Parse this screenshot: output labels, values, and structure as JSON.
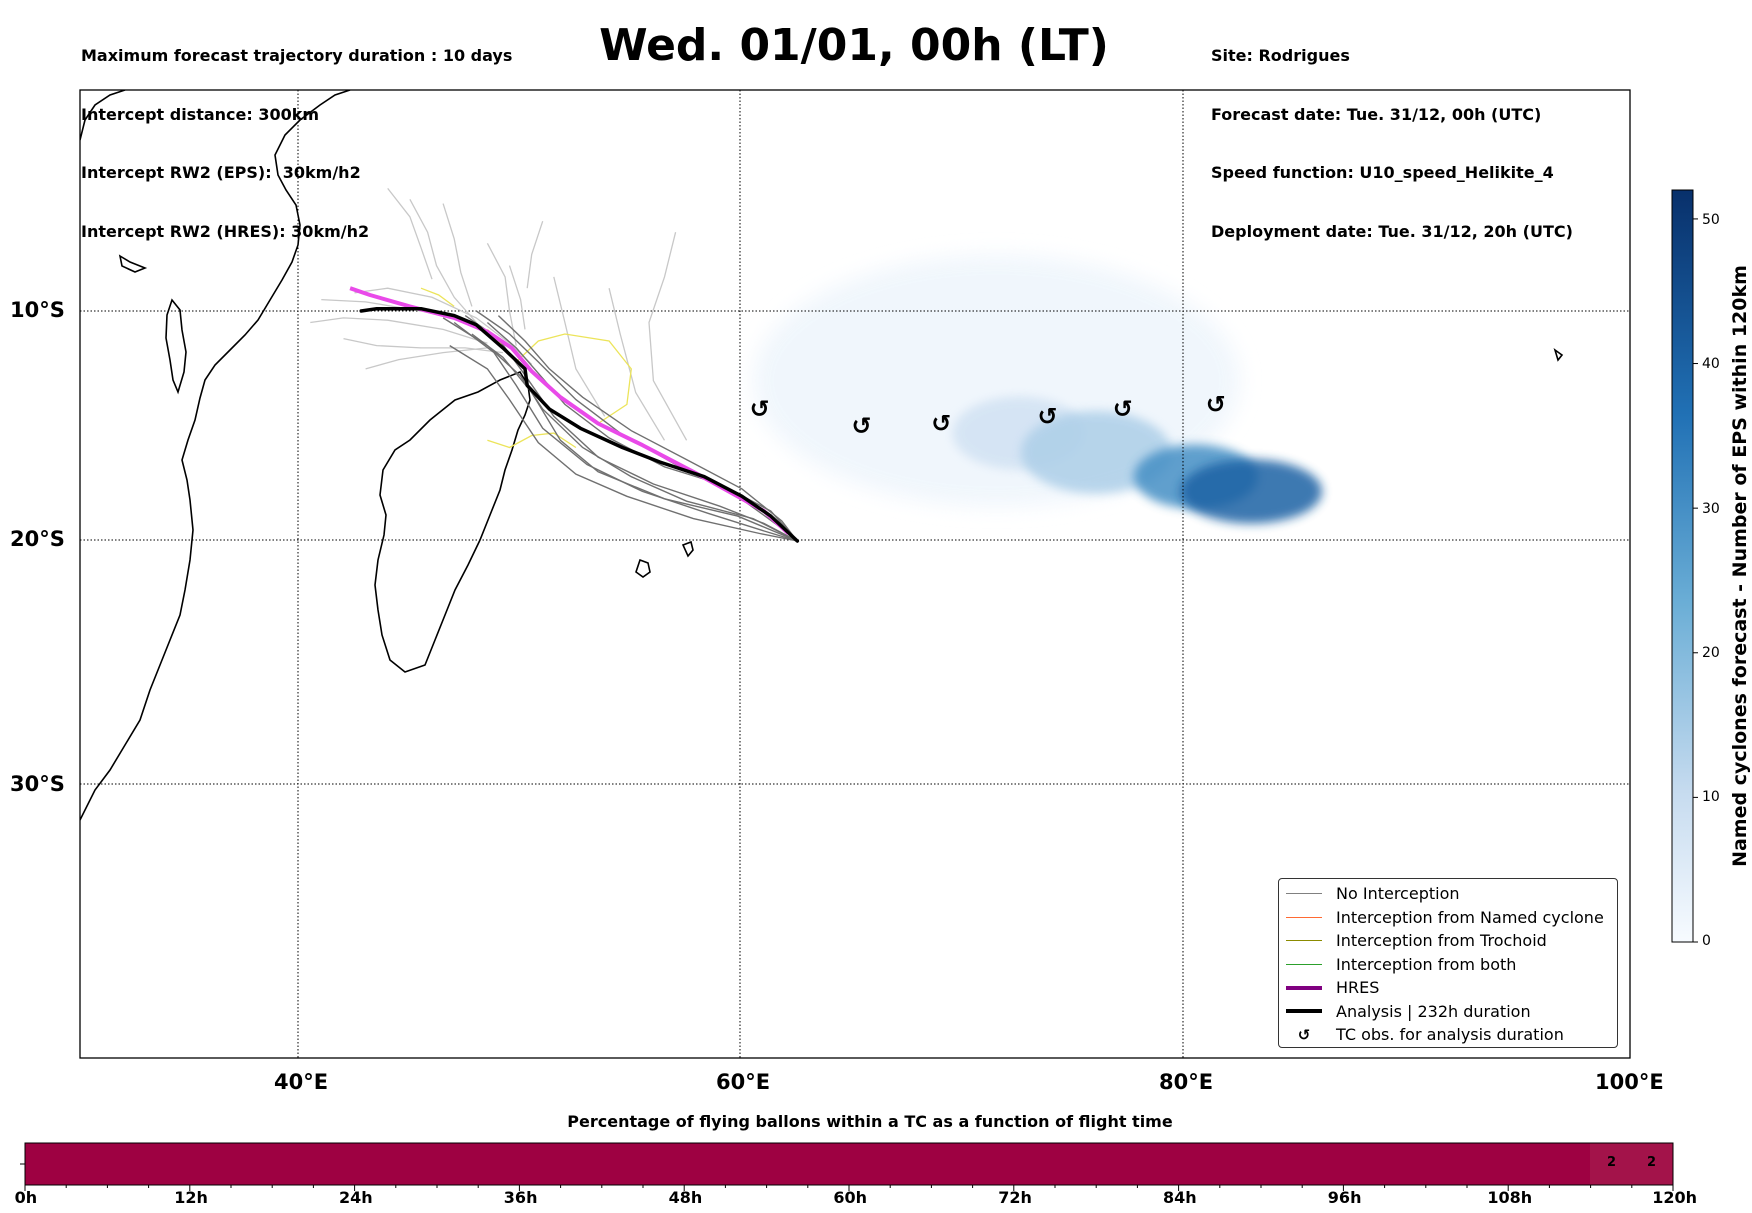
{
  "header": {
    "left_lines": [
      "Maximum forecast trajectory duration : 10 days",
      "Intercept distance: 300km",
      "Intercept RW2 (EPS):  30km/h2",
      "Intercept RW2 (HRES): 30km/h2"
    ],
    "title": "Wed. 01/01, 00h (LT)",
    "right_lines": [
      "Site: Rodrigues",
      "Forecast date: Tue. 31/12, 00h (UTC)",
      "Speed function: U10_speed_Helikite_4",
      "Deployment date: Tue. 31/12, 20h (UTC)"
    ]
  },
  "map": {
    "lat_labels": [
      "10°S",
      "20°S",
      "30°S"
    ],
    "lon_labels": [
      "40°E",
      "60°E",
      "80°E",
      "100°E"
    ],
    "gridlines": true,
    "tc_obs_symbol": "↺",
    "tc_obs_positions": [
      {
        "lon": 61.8,
        "lat": -14.2
      },
      {
        "lon": 66.4,
        "lat": -14.9
      },
      {
        "lon": 70.0,
        "lat": -14.8
      },
      {
        "lon": 74.8,
        "lat": -14.5
      },
      {
        "lon": 78.2,
        "lat": -14.2
      },
      {
        "lon": 82.4,
        "lat": -14.0
      }
    ],
    "analysis_track": [
      [
        43.8,
        -10.0
      ],
      [
        44.5,
        -9.9
      ],
      [
        46.5,
        -9.9
      ],
      [
        48.0,
        -10.2
      ],
      [
        49.0,
        -10.6
      ],
      [
        50.2,
        -11.6
      ],
      [
        51.2,
        -12.5
      ],
      [
        51.3,
        -13.2
      ],
      [
        52.3,
        -14.2
      ],
      [
        53.7,
        -15.0
      ],
      [
        55.6,
        -15.8
      ],
      [
        57.3,
        -16.4
      ],
      [
        59.3,
        -17.0
      ],
      [
        61.0,
        -17.8
      ],
      [
        62.3,
        -18.6
      ],
      [
        63.5,
        -19.6
      ]
    ],
    "hres_track": [
      [
        43.3,
        -9.0
      ],
      [
        44.2,
        -9.3
      ],
      [
        46.0,
        -9.8
      ],
      [
        48.0,
        -10.3
      ],
      [
        49.5,
        -10.9
      ],
      [
        50.6,
        -11.6
      ],
      [
        51.5,
        -12.6
      ],
      [
        52.8,
        -13.7
      ],
      [
        54.5,
        -14.8
      ],
      [
        56.5,
        -15.7
      ],
      [
        58.8,
        -16.8
      ],
      [
        60.6,
        -17.7
      ],
      [
        62.0,
        -18.4
      ],
      [
        63.1,
        -19.3
      ]
    ],
    "eps_dark_tracks": [
      [
        [
          48.5,
          -10.2
        ],
        [
          50.0,
          -11.2
        ],
        [
          51.0,
          -12.5
        ],
        [
          52.5,
          -14.5
        ],
        [
          54.5,
          -16.2
        ],
        [
          57.0,
          -17.3
        ],
        [
          60.0,
          -18.2
        ],
        [
          62.0,
          -18.9
        ],
        [
          63.5,
          -19.6
        ]
      ],
      [
        [
          48.0,
          -10.5
        ],
        [
          49.8,
          -11.8
        ],
        [
          50.8,
          -13.2
        ],
        [
          52.0,
          -15.0
        ],
        [
          54.0,
          -16.5
        ],
        [
          56.5,
          -17.6
        ],
        [
          59.5,
          -18.5
        ],
        [
          62.0,
          -19.2
        ],
        [
          63.5,
          -19.6
        ]
      ],
      [
        [
          49.0,
          -10.0
        ],
        [
          50.5,
          -11.0
        ],
        [
          51.8,
          -12.2
        ],
        [
          53.5,
          -13.8
        ],
        [
          55.5,
          -15.2
        ],
        [
          58.0,
          -16.5
        ],
        [
          60.5,
          -17.6
        ],
        [
          62.5,
          -18.9
        ],
        [
          63.5,
          -19.6
        ]
      ],
      [
        [
          47.5,
          -10.3
        ],
        [
          49.5,
          -11.5
        ],
        [
          51.0,
          -12.8
        ],
        [
          52.0,
          -14.2
        ],
        [
          53.8,
          -15.8
        ],
        [
          56.0,
          -17.0
        ],
        [
          58.5,
          -18.0
        ],
        [
          61.5,
          -18.7
        ],
        [
          63.5,
          -19.6
        ]
      ],
      [
        [
          48.8,
          -11.0
        ],
        [
          50.2,
          -12.0
        ],
        [
          51.5,
          -13.5
        ],
        [
          52.8,
          -15.5
        ],
        [
          54.5,
          -16.8
        ],
        [
          57.5,
          -17.9
        ],
        [
          60.8,
          -18.6
        ],
        [
          63.5,
          -19.6
        ]
      ],
      [
        [
          49.5,
          -10.5
        ],
        [
          50.8,
          -11.6
        ],
        [
          52.0,
          -12.9
        ],
        [
          53.0,
          -14.0
        ],
        [
          55.0,
          -15.4
        ],
        [
          57.5,
          -16.6
        ],
        [
          60.0,
          -17.3
        ],
        [
          62.3,
          -18.4
        ],
        [
          63.5,
          -19.6
        ]
      ],
      [
        [
          47.8,
          -11.5
        ],
        [
          49.5,
          -12.5
        ],
        [
          50.5,
          -13.8
        ],
        [
          51.8,
          -15.6
        ],
        [
          53.5,
          -16.9
        ],
        [
          55.8,
          -17.8
        ],
        [
          58.8,
          -18.7
        ],
        [
          61.8,
          -19.3
        ],
        [
          63.5,
          -19.6
        ]
      ],
      [
        [
          50.0,
          -10.2
        ],
        [
          51.2,
          -11.3
        ],
        [
          52.3,
          -12.5
        ],
        [
          53.8,
          -13.7
        ],
        [
          56.0,
          -15.1
        ],
        [
          58.5,
          -16.3
        ],
        [
          61.0,
          -17.5
        ],
        [
          62.8,
          -18.8
        ],
        [
          63.5,
          -19.6
        ]
      ]
    ],
    "eps_light_tracks": [
      [
        [
          43.5,
          -9.2
        ],
        [
          45.0,
          -9.0
        ],
        [
          47.0,
          -9.4
        ],
        [
          49.0,
          -10.3
        ],
        [
          50.5,
          -11.4
        ],
        [
          51.5,
          -12.3
        ]
      ],
      [
        [
          41.5,
          -10.5
        ],
        [
          43.0,
          -10.3
        ],
        [
          45.0,
          -10.4
        ],
        [
          47.5,
          -10.8
        ],
        [
          49.5,
          -11.4
        ]
      ],
      [
        [
          42.0,
          -9.5
        ],
        [
          44.0,
          -9.6
        ],
        [
          46.5,
          -10.0
        ],
        [
          48.5,
          -10.4
        ]
      ],
      [
        [
          46.0,
          -5.0
        ],
        [
          46.8,
          -6.5
        ],
        [
          47.2,
          -8.0
        ],
        [
          48.0,
          -9.4
        ],
        [
          49.0,
          -10.5
        ]
      ],
      [
        [
          47.5,
          -5.2
        ],
        [
          48.0,
          -6.8
        ],
        [
          48.3,
          -8.3
        ],
        [
          48.8,
          -9.8
        ]
      ],
      [
        [
          49.5,
          -7.0
        ],
        [
          50.3,
          -8.5
        ],
        [
          50.5,
          -10.0
        ],
        [
          50.8,
          -11.5
        ]
      ],
      [
        [
          52.5,
          -8.5
        ],
        [
          53.0,
          -10.5
        ],
        [
          53.5,
          -12.5
        ],
        [
          54.8,
          -14.5
        ]
      ],
      [
        [
          55.0,
          -9.0
        ],
        [
          55.5,
          -11.0
        ],
        [
          56.2,
          -13.5
        ],
        [
          57.5,
          -15.5
        ]
      ],
      [
        [
          58.0,
          -6.5
        ],
        [
          57.5,
          -8.5
        ],
        [
          56.8,
          -10.5
        ],
        [
          57.0,
          -13.0
        ],
        [
          58.5,
          -15.5
        ]
      ],
      [
        [
          52.0,
          -6.0
        ],
        [
          51.5,
          -7.5
        ],
        [
          51.3,
          -9.0
        ]
      ],
      [
        [
          43.0,
          -11.2
        ],
        [
          44.5,
          -11.5
        ],
        [
          46.5,
          -11.6
        ],
        [
          48.5,
          -11.6
        ],
        [
          50.2,
          -11.8
        ]
      ],
      [
        [
          44.0,
          -12.5
        ],
        [
          45.5,
          -12.1
        ],
        [
          47.5,
          -11.8
        ],
        [
          49.5,
          -11.6
        ]
      ],
      [
        [
          50.5,
          -8.0
        ],
        [
          51.0,
          -9.5
        ],
        [
          51.2,
          -10.8
        ]
      ],
      [
        [
          45.0,
          -4.5
        ],
        [
          46.0,
          -5.8
        ],
        [
          46.5,
          -7.2
        ],
        [
          47.0,
          -8.6
        ]
      ]
    ],
    "yellow_tracks": [
      [
        [
          49.5,
          -10.8
        ],
        [
          50.2,
          -11.5
        ],
        [
          50.8,
          -12.2
        ],
        [
          51.8,
          -11.3
        ],
        [
          53.0,
          -11.0
        ],
        [
          55.0,
          -11.3
        ],
        [
          56.0,
          -12.5
        ],
        [
          55.8,
          -14.0
        ],
        [
          54.5,
          -14.8
        ]
      ],
      [
        [
          49.5,
          -15.5
        ],
        [
          50.5,
          -15.8
        ],
        [
          51.5,
          -15.3
        ],
        [
          52.5,
          -15.2
        ],
        [
          53.5,
          -15.8
        ]
      ],
      [
        [
          46.5,
          -9.0
        ],
        [
          47.3,
          -9.3
        ],
        [
          48.0,
          -9.8
        ]
      ]
    ],
    "density_blobs": [
      {
        "lon": 84.0,
        "lat": -17.6,
        "rx": 3.2,
        "ry": 1.4,
        "value": 40
      },
      {
        "lon": 81.5,
        "lat": -17.0,
        "rx": 2.8,
        "ry": 1.4,
        "value": 30
      },
      {
        "lon": 77.0,
        "lat": -16.0,
        "rx": 3.4,
        "ry": 1.8,
        "value": 14
      },
      {
        "lon": 73.5,
        "lat": -15.2,
        "rx": 3.0,
        "ry": 1.6,
        "value": 8
      },
      {
        "lon": 72.5,
        "lat": -13.0,
        "rx": 11.0,
        "ry": 5.5,
        "value": 2
      }
    ]
  },
  "legend": {
    "items": [
      {
        "label": "No Interception",
        "color": "#808080",
        "kind": "line",
        "width": 1.2
      },
      {
        "label": "Interception from Named cyclone",
        "color": "#ff6a33",
        "kind": "line",
        "width": 1.2
      },
      {
        "label": "Interception from Trochoid",
        "color": "#8b8b00",
        "kind": "line",
        "width": 1.2
      },
      {
        "label": "Interception from both",
        "color": "#2ca02c",
        "kind": "line",
        "width": 1.2
      },
      {
        "label": "HRES",
        "color": "#800080",
        "kind": "line",
        "width": 4
      },
      {
        "label": "Analysis | 232h duration",
        "color": "#000000",
        "kind": "line",
        "width": 4
      },
      {
        "label": "TC obs. for analysis duration",
        "color": "#000000",
        "kind": "marker",
        "symbol": "↺"
      }
    ]
  },
  "colorbar": {
    "label": "Named cyclones forecast - Number of EPS within 120km",
    "min": 0,
    "max": 52,
    "ticks": [
      0,
      10,
      20,
      30,
      40,
      50
    ],
    "color_low": "#f7fbff",
    "color_high": "#08306b"
  },
  "timebar": {
    "title": "Percentage of flying ballons within a TC as a function of flight time",
    "tick_labels": [
      "0h",
      "12h",
      "24h",
      "36h",
      "48h",
      "60h",
      "72h",
      "84h",
      "96h",
      "108h",
      "120h"
    ],
    "main_color": "#9e0142",
    "highlight_color": "#a3134a",
    "cell_values": [
      "2",
      "2"
    ]
  }
}
